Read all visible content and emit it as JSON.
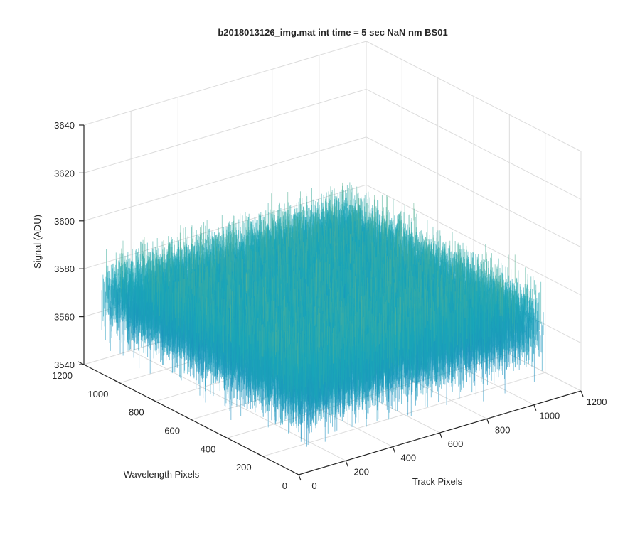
{
  "window": {
    "title": "b2018013126_img.mat int time = 5 sec  NaN nm BS01"
  },
  "colors": {
    "axis": "#262626",
    "grid": "#dcdcdc",
    "surface_low": "#1f7fc4",
    "surface_mid": "#1aa7b8",
    "surface_high": "#b8c25a"
  },
  "chart_data": {
    "type": "surface",
    "title": "b2018013126_img.mat int time = 5 sec  NaN nm BS01",
    "xlabel": "Track Pixels",
    "ylabel": "Wavelength Pixels",
    "zlabel": "Signal (ADU)",
    "xlim": [
      0,
      1200
    ],
    "ylim": [
      0,
      1200
    ],
    "zlim": [
      3540,
      3640
    ],
    "xticks": [
      "0",
      "200",
      "400",
      "600",
      "800",
      "1000",
      "1200"
    ],
    "yticks": [
      "0",
      "200",
      "400",
      "600",
      "800",
      "1000",
      "1200"
    ],
    "zticks": [
      "3540",
      "3560",
      "3580",
      "3600",
      "3620",
      "3640"
    ],
    "grid": true,
    "colormap": "parula",
    "surface_extent": {
      "track_pixels": [
        0,
        1040
      ],
      "wavelength_pixels": [
        0,
        1100
      ]
    },
    "signal_range": [
      3550,
      3620
    ],
    "signal_mean": 3580
  }
}
